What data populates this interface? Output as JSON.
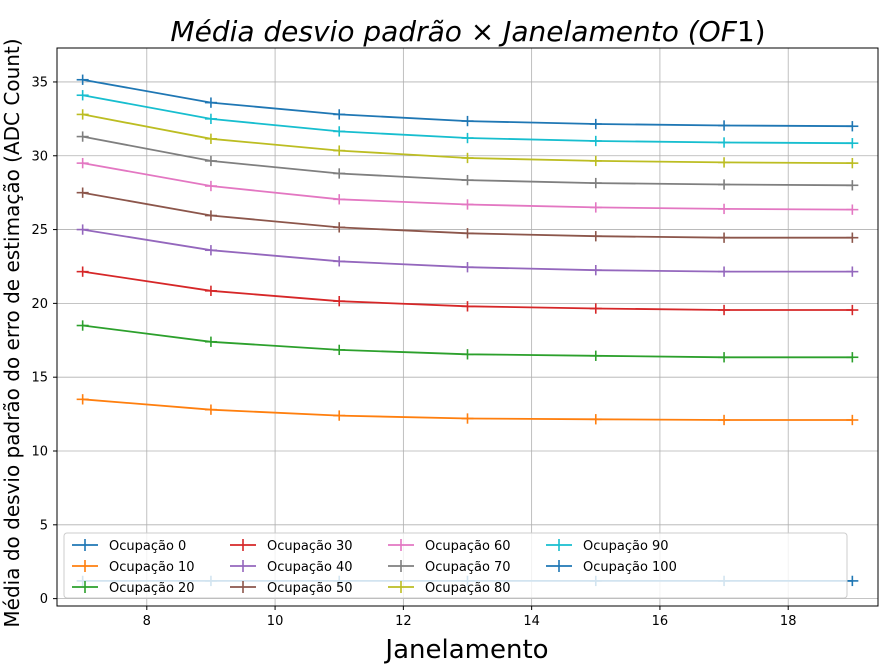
{
  "chart_data": {
    "type": "line",
    "title": "Média desvio padrão × Janelamento (OF1)",
    "title_main": "Média desvio padrão × Janelamento (",
    "title_italic": "OF",
    "title_num": "1",
    "title_close": ")",
    "xlabel": "Janelamento",
    "ylabel": "Média do desvio padrão do erro de estimação (ADC Count)",
    "xlim": [
      6.6,
      19.4
    ],
    "ylim": [
      -0.5,
      37.3
    ],
    "xticks": [
      8,
      10,
      12,
      14,
      16,
      18
    ],
    "yticks": [
      0,
      5,
      10,
      15,
      20,
      25,
      30,
      35
    ],
    "grid": true,
    "legend_position": "lower-center",
    "x": [
      7,
      9,
      11,
      13,
      15,
      17,
      19
    ],
    "series": [
      {
        "name": "Ocupação 0",
        "color": "#1f77b4",
        "values": [
          1.2,
          1.2,
          1.2,
          1.2,
          1.2,
          1.2,
          1.2
        ]
      },
      {
        "name": "Ocupação 10",
        "color": "#ff7f0e",
        "values": [
          13.5,
          12.8,
          12.4,
          12.2,
          12.15,
          12.1,
          12.1
        ]
      },
      {
        "name": "Ocupação 20",
        "color": "#2ca02c",
        "values": [
          18.5,
          17.4,
          16.85,
          16.55,
          16.45,
          16.35,
          16.35
        ]
      },
      {
        "name": "Ocupação 30",
        "color": "#d62728",
        "values": [
          22.15,
          20.85,
          20.15,
          19.8,
          19.65,
          19.55,
          19.55
        ]
      },
      {
        "name": "Ocupação 40",
        "color": "#9467bd",
        "values": [
          25.0,
          23.6,
          22.85,
          22.45,
          22.25,
          22.15,
          22.15
        ]
      },
      {
        "name": "Ocupação 50",
        "color": "#8c564b",
        "values": [
          27.5,
          25.95,
          25.15,
          24.75,
          24.55,
          24.45,
          24.45
        ]
      },
      {
        "name": "Ocupação 60",
        "color": "#e377c2",
        "values": [
          29.5,
          27.95,
          27.05,
          26.7,
          26.5,
          26.4,
          26.35
        ]
      },
      {
        "name": "Ocupação 70",
        "color": "#7f7f7f",
        "values": [
          31.3,
          29.65,
          28.8,
          28.35,
          28.15,
          28.05,
          28.0
        ]
      },
      {
        "name": "Ocupação 80",
        "color": "#bcbd22",
        "values": [
          32.8,
          31.15,
          30.35,
          29.85,
          29.65,
          29.55,
          29.5
        ]
      },
      {
        "name": "Ocupação 90",
        "color": "#17becf",
        "values": [
          34.1,
          32.5,
          31.65,
          31.2,
          31.0,
          30.9,
          30.85
        ]
      },
      {
        "name": "Ocupação 100",
        "color": "#1f77b4",
        "values": [
          35.15,
          33.6,
          32.8,
          32.35,
          32.15,
          32.05,
          32.0
        ]
      }
    ]
  }
}
